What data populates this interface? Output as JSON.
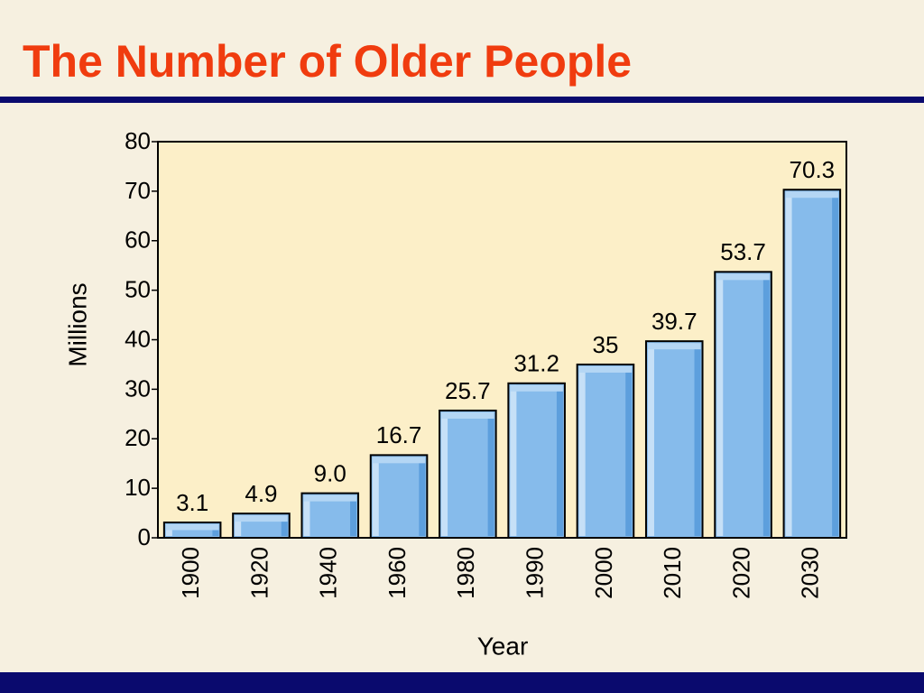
{
  "chart_data": {
    "type": "bar",
    "title": "The Number of Older People",
    "x_label": "Year",
    "y_label": "Millions",
    "categories": [
      "1900",
      "1920",
      "1940",
      "1960",
      "1980",
      "1990",
      "2000",
      "2010",
      "2020",
      "2030"
    ],
    "values": [
      3.1,
      4.9,
      9,
      16.7,
      25.7,
      31.2,
      35,
      39.7,
      53.7,
      70.3
    ],
    "value_labels": [
      "3.1",
      "4.9",
      "9.0",
      "16.7",
      "25.7",
      "31.2",
      "35",
      "39.7",
      "53.7",
      "70.3"
    ],
    "color": "#86bbeb",
    "ylim": [
      0,
      80
    ],
    "yticks": [
      0,
      10,
      20,
      30,
      40,
      50,
      60,
      70,
      80
    ],
    "grid": false
  }
}
